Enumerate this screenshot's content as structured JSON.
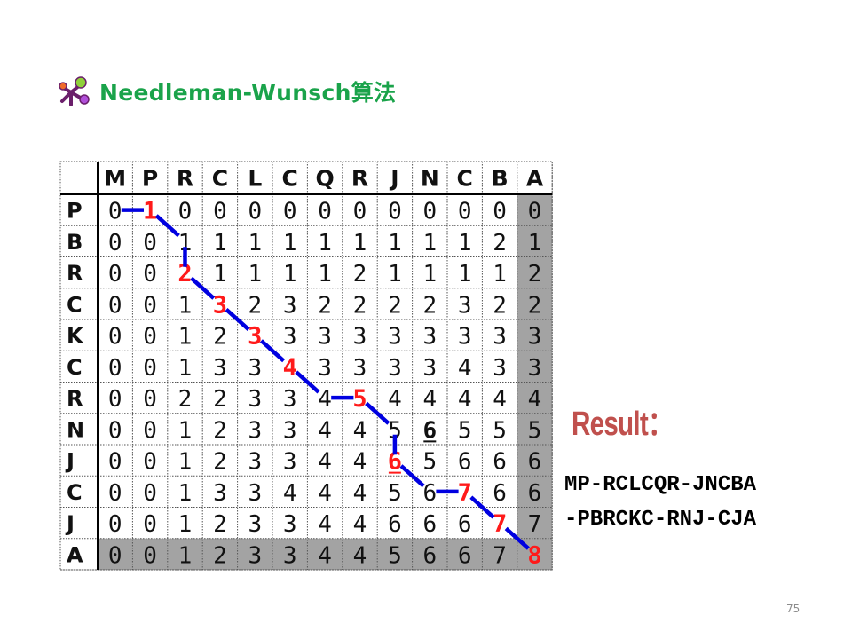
{
  "title": {
    "text": "Needleman-Wunsch算法",
    "icon": "molecule-bullet-icon",
    "color": "#1aa34a"
  },
  "matrix": {
    "col_headers": [
      "M",
      "P",
      "R",
      "C",
      "L",
      "C",
      "Q",
      "R",
      "J",
      "N",
      "C",
      "B",
      "A"
    ],
    "row_headers": [
      "P",
      "B",
      "R",
      "C",
      "K",
      "C",
      "R",
      "N",
      "J",
      "C",
      "J",
      "A"
    ],
    "values": [
      [
        0,
        1,
        0,
        0,
        0,
        0,
        0,
        0,
        0,
        0,
        0,
        0,
        0
      ],
      [
        0,
        0,
        1,
        1,
        1,
        1,
        1,
        1,
        1,
        1,
        1,
        2,
        1
      ],
      [
        0,
        0,
        2,
        1,
        1,
        1,
        1,
        2,
        1,
        1,
        1,
        1,
        2
      ],
      [
        0,
        0,
        1,
        3,
        2,
        3,
        2,
        2,
        2,
        2,
        3,
        2,
        2
      ],
      [
        0,
        0,
        1,
        2,
        3,
        3,
        3,
        3,
        3,
        3,
        3,
        3,
        3
      ],
      [
        0,
        0,
        1,
        3,
        3,
        4,
        3,
        3,
        3,
        3,
        4,
        3,
        3
      ],
      [
        0,
        0,
        2,
        2,
        3,
        3,
        4,
        5,
        4,
        4,
        4,
        4,
        4
      ],
      [
        0,
        0,
        1,
        2,
        3,
        3,
        4,
        4,
        5,
        6,
        5,
        5,
        5
      ],
      [
        0,
        0,
        1,
        2,
        3,
        3,
        4,
        4,
        6,
        5,
        6,
        6,
        6
      ],
      [
        0,
        0,
        1,
        3,
        3,
        4,
        4,
        4,
        5,
        6,
        7,
        6,
        6
      ],
      [
        0,
        0,
        1,
        2,
        3,
        3,
        4,
        4,
        6,
        6,
        6,
        7,
        7
      ],
      [
        0,
        0,
        1,
        2,
        3,
        3,
        4,
        4,
        5,
        6,
        6,
        7,
        8
      ]
    ],
    "highlighted_cells": [
      [
        0,
        1
      ],
      [
        2,
        2
      ],
      [
        3,
        3
      ],
      [
        4,
        4
      ],
      [
        5,
        5
      ],
      [
        6,
        7
      ],
      [
        8,
        8
      ],
      [
        9,
        10
      ],
      [
        10,
        11
      ],
      [
        11,
        12
      ]
    ],
    "underlined_cells": [
      [
        7,
        9
      ],
      [
        8,
        8
      ]
    ],
    "traceback_path": [
      [
        0,
        0
      ],
      [
        0,
        1
      ],
      [
        1,
        2
      ],
      [
        2,
        2
      ],
      [
        3,
        3
      ],
      [
        4,
        4
      ],
      [
        5,
        5
      ],
      [
        6,
        6
      ],
      [
        6,
        7
      ],
      [
        7,
        8
      ],
      [
        8,
        8
      ],
      [
        9,
        9
      ],
      [
        9,
        10
      ],
      [
        10,
        11
      ],
      [
        11,
        12
      ]
    ],
    "colors": {
      "highlight": "#ff1a1a",
      "path": "#0000e0",
      "shaded": "#a3a3a3",
      "text": "#111111"
    }
  },
  "result": {
    "label": "Result：",
    "line1": "MP-RCLCQR-JNCBA",
    "line2": "-PBRCKC-RNJ-CJA",
    "label_color": "#c0504d"
  },
  "page_number": "75"
}
